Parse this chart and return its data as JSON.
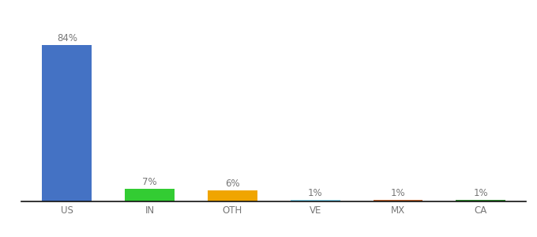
{
  "categories": [
    "US",
    "IN",
    "OTH",
    "VE",
    "MX",
    "CA"
  ],
  "values": [
    84,
    7,
    6,
    1,
    1,
    1
  ],
  "labels": [
    "84%",
    "7%",
    "6%",
    "1%",
    "1%",
    "1%"
  ],
  "bar_colors": [
    "#4472C4",
    "#33CC33",
    "#F0A500",
    "#80CFEC",
    "#C0622A",
    "#2E8B2E"
  ],
  "background_color": "#ffffff",
  "ylim": [
    0,
    98
  ],
  "label_fontsize": 8.5,
  "tick_fontsize": 8.5
}
